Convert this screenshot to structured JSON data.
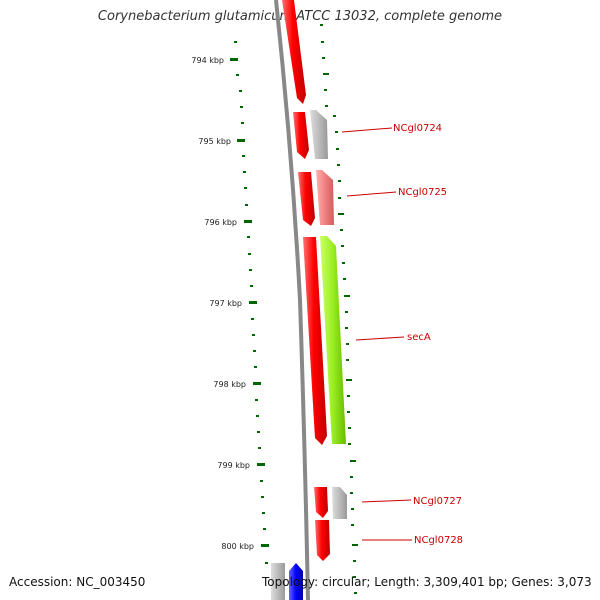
{
  "title": "Corynebacterium glutamicum ATCC 13032, complete genome",
  "accession": "Accession: NC_003450",
  "summary": "Topology: circular; Length: 3,309,401 bp; Genes: 3,073",
  "colors": {
    "strand_forward": "#ff0000",
    "strand_reverse_gray": "#bbbbbb",
    "strand_reverse_pink": "#f08080",
    "secA": "#99ee22",
    "backbone": "#888888",
    "tick": "#006600",
    "blue_gene": "#0000ff",
    "label": "#cc0000"
  },
  "scale": {
    "ticks": [
      {
        "label": "794 kbp",
        "kbp": 794
      },
      {
        "label": "795 kbp",
        "kbp": 795
      },
      {
        "label": "796 kbp",
        "kbp": 796
      },
      {
        "label": "797 kbp",
        "kbp": 797
      },
      {
        "label": "798 kbp",
        "kbp": 798
      },
      {
        "label": "799 kbp",
        "kbp": 799
      },
      {
        "label": "800 kbp",
        "kbp": 800
      }
    ]
  },
  "genes": {
    "labeled": [
      {
        "name": "NCgl0724"
      },
      {
        "name": "NCgl0725"
      },
      {
        "name": "secA"
      },
      {
        "name": "NCgl0727"
      },
      {
        "name": "NCgl0728"
      }
    ]
  }
}
